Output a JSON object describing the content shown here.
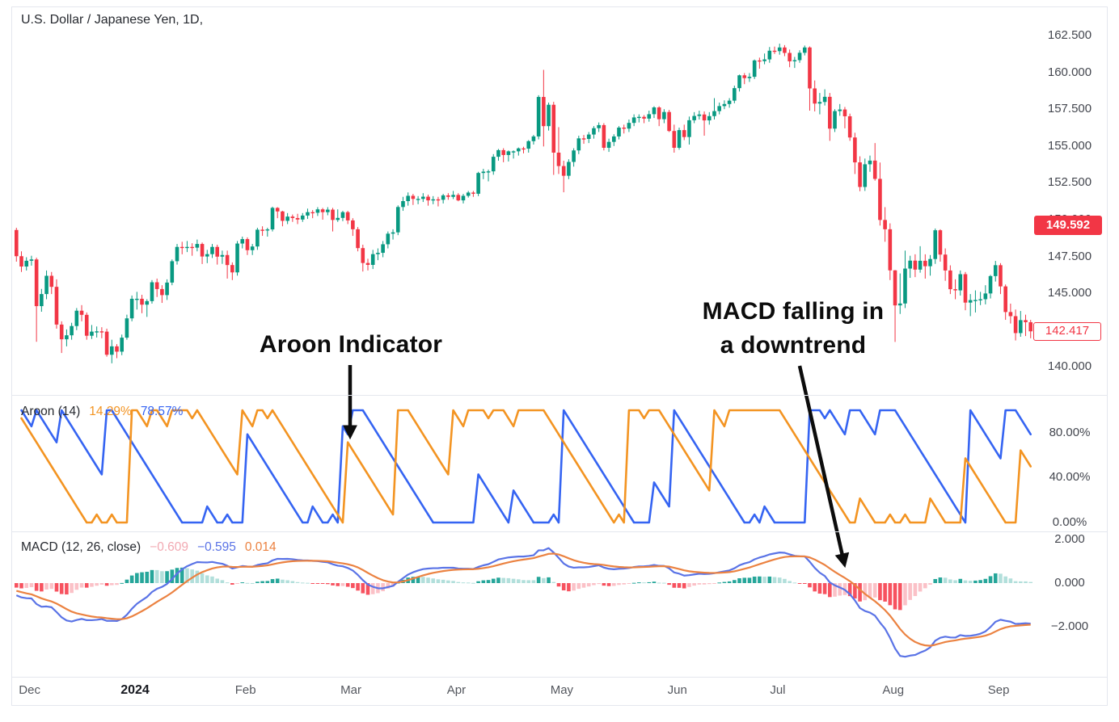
{
  "annotations": {
    "aroon_label": "Aroon Indicator",
    "macd_label_line1": "MACD falling in",
    "macd_label_line2": "a downtrend"
  },
  "chart_data": {
    "type": "candlestick",
    "title": "U.S. Dollar / Japanese Yen, 1D,",
    "symbol": "U.S. Dollar / Japanese Yen",
    "interval": "1D",
    "candle_colors": {
      "up": "#089981",
      "down": "#F23645"
    },
    "price_axis": {
      "ticks": [
        {
          "label": "162.500",
          "value": 162.5
        },
        {
          "label": "160.000",
          "value": 160
        },
        {
          "label": "157.500",
          "value": 157.5
        },
        {
          "label": "155.000",
          "value": 155
        },
        {
          "label": "152.500",
          "value": 152.5
        },
        {
          "label": "150.000",
          "value": 150
        },
        {
          "label": "147.500",
          "value": 147.5
        },
        {
          "label": "145.000",
          "value": 145
        },
        {
          "label": "142.500",
          "value": 142.5
        },
        {
          "label": "140.000",
          "value": 140
        }
      ],
      "badge_filled": {
        "label": "149.592",
        "value": 149.592
      },
      "badge_outline": {
        "label": "142.417",
        "value": 142.417
      }
    },
    "time_axis": {
      "labels": [
        {
          "text": "Dec",
          "index": 3
        },
        {
          "text": "2024",
          "index": 24,
          "bold": true
        },
        {
          "text": "Feb",
          "index": 46
        },
        {
          "text": "Mar",
          "index": 67
        },
        {
          "text": "Apr",
          "index": 88
        },
        {
          "text": "May",
          "index": 109
        },
        {
          "text": "Jun",
          "index": 132
        },
        {
          "text": "Jul",
          "index": 152
        },
        {
          "text": "Aug",
          "index": 175
        },
        {
          "text": "Sep",
          "index": 196
        }
      ]
    },
    "indicators": {
      "aroon": {
        "legend": "Aroon (14)",
        "length": 14,
        "up_value": "14.29%",
        "down_value": "78.57%",
        "up_color": "#F39422",
        "down_color": "#3564F2",
        "ticks": [
          {
            "label": "80.00%",
            "value": 80
          },
          {
            "label": "40.00%",
            "value": 40
          },
          {
            "label": "0.00%",
            "value": 0
          }
        ]
      },
      "macd": {
        "legend": "MACD (12, 26, close)",
        "fast": 12,
        "slow": 26,
        "smoothing": 9,
        "hist_value": "−0.609",
        "macd_value": "−0.595",
        "signal_value": "0.014",
        "hist_value_color": "#f2a9b2",
        "macd_color": "#5A73E6",
        "signal_color": "#EB8241",
        "hist_colors": {
          "up_grow": "#26A69A",
          "up_fall": "#B2DFDB",
          "down_fall": "#F7525F",
          "down_grow": "#FBC1C7"
        },
        "ema_seeds": {
          "ema_fast": 148.7,
          "ema_slow": 149.2,
          "signal": -0.3
        },
        "ticks": [
          {
            "label": "2.000",
            "value": 2
          },
          {
            "label": "0.000",
            "value": 0
          },
          {
            "label": "−2.000",
            "value": -2
          }
        ]
      }
    },
    "candles": [
      [
        149.3,
        149.45,
        147.15,
        147.52
      ],
      [
        147.52,
        147.85,
        146.45,
        146.82
      ],
      [
        146.82,
        147.45,
        146.55,
        147.21
      ],
      [
        147.21,
        147.55,
        146.88,
        147.3
      ],
      [
        147.3,
        147.42,
        141.71,
        144.13
      ],
      [
        144.13,
        145.3,
        143.75,
        144.95
      ],
      [
        144.95,
        146.55,
        144.6,
        146.19
      ],
      [
        146.19,
        146.45,
        144.95,
        145.44
      ],
      [
        145.44,
        145.95,
        142.6,
        142.88
      ],
      [
        142.88,
        143.1,
        140.95,
        141.88
      ],
      [
        141.88,
        142.55,
        141.4,
        142.15
      ],
      [
        142.15,
        143.0,
        141.85,
        142.78
      ],
      [
        142.78,
        144.0,
        142.5,
        143.82
      ],
      [
        143.82,
        144.2,
        143.1,
        143.54
      ],
      [
        143.54,
        143.7,
        141.85,
        142.12
      ],
      [
        142.12,
        142.85,
        141.9,
        142.4
      ],
      [
        142.4,
        142.75,
        142.0,
        142.42
      ],
      [
        142.42,
        142.7,
        141.95,
        142.4
      ],
      [
        142.4,
        142.6,
        140.7,
        140.83
      ],
      [
        140.83,
        141.85,
        140.25,
        141.4
      ],
      [
        141.4,
        141.55,
        140.6,
        141.04
      ],
      [
        141.04,
        142.2,
        140.8,
        141.99
      ],
      [
        141.99,
        143.55,
        141.85,
        143.3
      ],
      [
        143.3,
        144.85,
        143.1,
        144.63
      ],
      [
        144.63,
        145.1,
        143.9,
        144.63
      ],
      [
        144.63,
        144.9,
        143.65,
        144.23
      ],
      [
        144.23,
        144.6,
        143.4,
        144.47
      ],
      [
        144.47,
        145.9,
        144.3,
        145.75
      ],
      [
        145.75,
        146.0,
        144.75,
        145.29
      ],
      [
        145.29,
        145.55,
        144.35,
        144.88
      ],
      [
        144.88,
        145.95,
        144.55,
        145.73
      ],
      [
        145.73,
        147.3,
        145.55,
        147.18
      ],
      [
        147.18,
        148.35,
        146.95,
        148.15
      ],
      [
        148.15,
        148.5,
        147.65,
        148.14
      ],
      [
        148.14,
        148.55,
        147.8,
        148.15
      ],
      [
        148.15,
        148.4,
        147.55,
        148.1
      ],
      [
        148.1,
        148.65,
        147.85,
        148.35
      ],
      [
        148.35,
        148.45,
        146.99,
        147.5
      ],
      [
        147.5,
        147.95,
        147.05,
        147.66
      ],
      [
        147.66,
        148.35,
        147.4,
        148.15
      ],
      [
        148.15,
        148.3,
        146.95,
        147.49
      ],
      [
        147.49,
        147.9,
        147.0,
        147.6
      ],
      [
        147.6,
        147.9,
        146.0,
        146.92
      ],
      [
        146.92,
        147.1,
        145.9,
        146.42
      ],
      [
        146.42,
        148.55,
        146.2,
        148.38
      ],
      [
        148.38,
        148.85,
        148.05,
        148.68
      ],
      [
        148.68,
        148.8,
        147.6,
        147.93
      ],
      [
        147.93,
        148.35,
        147.6,
        148.18
      ],
      [
        148.18,
        149.45,
        147.95,
        149.32
      ],
      [
        149.32,
        149.55,
        148.9,
        149.29
      ],
      [
        149.29,
        149.45,
        148.85,
        149.34
      ],
      [
        149.34,
        150.88,
        149.2,
        150.8
      ],
      [
        150.8,
        150.85,
        150.1,
        150.56
      ],
      [
        150.56,
        150.6,
        149.55,
        149.92
      ],
      [
        149.92,
        150.45,
        149.7,
        150.21
      ],
      [
        150.21,
        150.35,
        149.85,
        150.11
      ],
      [
        150.11,
        150.4,
        149.7,
        150.01
      ],
      [
        150.01,
        150.45,
        149.85,
        150.28
      ],
      [
        150.28,
        150.75,
        150.05,
        150.51
      ],
      [
        150.51,
        150.65,
        150.1,
        150.47
      ],
      [
        150.47,
        150.85,
        150.25,
        150.7
      ],
      [
        150.7,
        150.8,
        150.0,
        150.51
      ],
      [
        150.51,
        150.85,
        150.3,
        150.68
      ],
      [
        150.68,
        150.8,
        149.2,
        149.98
      ],
      [
        149.98,
        150.7,
        149.85,
        150.12
      ],
      [
        150.12,
        150.6,
        149.9,
        150.51
      ],
      [
        150.51,
        150.6,
        149.7,
        149.95
      ],
      [
        149.95,
        150.1,
        148.9,
        149.35
      ],
      [
        149.35,
        149.5,
        147.85,
        148.07
      ],
      [
        148.07,
        148.3,
        146.48,
        147.06
      ],
      [
        147.06,
        147.35,
        146.55,
        146.93
      ],
      [
        146.93,
        147.95,
        146.65,
        147.66
      ],
      [
        147.66,
        148.05,
        147.25,
        147.75
      ],
      [
        147.75,
        148.55,
        147.45,
        148.33
      ],
      [
        148.33,
        149.2,
        148.05,
        149.05
      ],
      [
        149.05,
        149.35,
        148.65,
        149.14
      ],
      [
        149.14,
        150.97,
        148.95,
        150.86
      ],
      [
        150.86,
        151.55,
        150.6,
        151.26
      ],
      [
        151.26,
        151.85,
        150.95,
        151.62
      ],
      [
        151.62,
        151.75,
        151.0,
        151.41
      ],
      [
        151.41,
        151.6,
        151.05,
        151.41
      ],
      [
        151.41,
        151.8,
        151.2,
        151.56
      ],
      [
        151.56,
        151.7,
        150.95,
        151.31
      ],
      [
        151.31,
        151.6,
        151.05,
        151.38
      ],
      [
        151.38,
        151.55,
        150.9,
        151.35
      ],
      [
        151.35,
        151.75,
        151.1,
        151.65
      ],
      [
        151.65,
        151.8,
        151.35,
        151.55
      ],
      [
        151.55,
        151.95,
        151.4,
        151.68
      ],
      [
        151.68,
        151.8,
        151.25,
        151.31
      ],
      [
        151.31,
        151.75,
        151.1,
        151.62
      ],
      [
        151.62,
        151.95,
        151.5,
        151.84
      ],
      [
        151.84,
        151.95,
        151.55,
        151.76
      ],
      [
        151.76,
        153.25,
        151.6,
        153.17
      ],
      [
        153.17,
        153.45,
        152.75,
        153.26
      ],
      [
        153.26,
        153.4,
        152.6,
        153.28
      ],
      [
        153.28,
        154.45,
        153.05,
        154.27
      ],
      [
        154.27,
        154.8,
        154.0,
        154.72
      ],
      [
        154.72,
        154.85,
        153.9,
        154.39
      ],
      [
        154.39,
        154.7,
        153.95,
        154.64
      ],
      [
        154.64,
        154.7,
        154.15,
        154.64
      ],
      [
        154.64,
        154.9,
        154.35,
        154.84
      ],
      [
        154.84,
        154.95,
        154.5,
        154.82
      ],
      [
        154.82,
        155.4,
        154.55,
        155.33
      ],
      [
        155.33,
        155.75,
        155.1,
        155.65
      ],
      [
        155.65,
        158.45,
        155.45,
        158.33
      ],
      [
        158.33,
        160.17,
        154.97,
        156.35
      ],
      [
        156.35,
        157.95,
        156.05,
        157.8
      ],
      [
        157.8,
        158.0,
        153.04,
        154.55
      ],
      [
        154.55,
        156.28,
        153.1,
        153.64
      ],
      [
        153.64,
        154.0,
        151.86,
        152.98
      ],
      [
        152.98,
        154.1,
        152.75,
        153.92
      ],
      [
        153.92,
        154.85,
        153.6,
        154.7
      ],
      [
        154.7,
        155.7,
        154.45,
        155.52
      ],
      [
        155.52,
        155.75,
        155.15,
        155.48
      ],
      [
        155.48,
        155.95,
        155.2,
        155.78
      ],
      [
        155.78,
        156.35,
        155.5,
        156.21
      ],
      [
        156.21,
        156.6,
        155.95,
        156.42
      ],
      [
        156.42,
        156.55,
        154.7,
        154.88
      ],
      [
        154.88,
        155.5,
        154.6,
        155.28
      ],
      [
        155.28,
        155.8,
        155.0,
        155.65
      ],
      [
        155.65,
        156.35,
        155.45,
        156.25
      ],
      [
        156.25,
        156.45,
        155.85,
        156.18
      ],
      [
        156.18,
        156.8,
        155.95,
        156.57
      ],
      [
        156.57,
        157.15,
        156.35,
        156.94
      ],
      [
        156.94,
        157.15,
        156.6,
        156.98
      ],
      [
        156.98,
        157.1,
        156.55,
        156.86
      ],
      [
        156.86,
        157.4,
        156.65,
        157.16
      ],
      [
        157.16,
        157.7,
        156.9,
        157.62
      ],
      [
        157.62,
        157.7,
        156.35,
        156.82
      ],
      [
        156.82,
        157.5,
        156.55,
        157.31
      ],
      [
        157.31,
        157.45,
        155.95,
        156.02
      ],
      [
        156.02,
        156.45,
        154.55,
        154.88
      ],
      [
        154.88,
        156.25,
        154.75,
        156.08
      ],
      [
        156.08,
        156.45,
        155.4,
        155.61
      ],
      [
        155.61,
        157.0,
        155.1,
        156.75
      ],
      [
        156.75,
        157.3,
        156.55,
        157.04
      ],
      [
        157.04,
        157.4,
        156.8,
        157.14
      ],
      [
        157.14,
        157.35,
        155.7,
        156.74
      ],
      [
        156.74,
        157.3,
        156.45,
        157.03
      ],
      [
        157.03,
        158.25,
        156.8,
        157.37
      ],
      [
        157.37,
        157.95,
        157.15,
        157.71
      ],
      [
        157.71,
        158.1,
        157.5,
        157.85
      ],
      [
        157.85,
        158.25,
        157.6,
        158.08
      ],
      [
        158.08,
        159.1,
        157.9,
        158.93
      ],
      [
        158.93,
        159.85,
        158.7,
        159.8
      ],
      [
        159.8,
        159.95,
        159.2,
        159.61
      ],
      [
        159.61,
        159.95,
        159.35,
        159.7
      ],
      [
        159.7,
        160.87,
        159.55,
        160.81
      ],
      [
        160.81,
        161.0,
        160.25,
        160.76
      ],
      [
        160.76,
        161.28,
        160.55,
        160.88
      ],
      [
        160.88,
        161.72,
        160.65,
        161.47
      ],
      [
        161.47,
        161.75,
        161.25,
        161.44
      ],
      [
        161.44,
        161.95,
        161.2,
        161.69
      ],
      [
        161.69,
        161.85,
        161.1,
        161.32
      ],
      [
        161.32,
        161.55,
        160.35,
        160.75
      ],
      [
        160.75,
        161.05,
        160.3,
        160.83
      ],
      [
        160.83,
        161.5,
        160.65,
        161.33
      ],
      [
        161.33,
        161.82,
        161.15,
        161.69
      ],
      [
        161.69,
        161.76,
        157.4,
        158.91
      ],
      [
        158.91,
        159.45,
        157.35,
        157.88
      ],
      [
        157.88,
        158.6,
        157.15,
        157.99
      ],
      [
        157.99,
        158.85,
        157.75,
        158.34
      ],
      [
        158.34,
        158.6,
        155.35,
        156.18
      ],
      [
        156.18,
        157.5,
        155.95,
        157.37
      ],
      [
        157.37,
        157.85,
        157.05,
        157.48
      ],
      [
        157.48,
        157.65,
        156.2,
        157.02
      ],
      [
        157.02,
        157.2,
        155.35,
        155.58
      ],
      [
        155.58,
        155.9,
        153.1,
        153.89
      ],
      [
        153.89,
        154.3,
        151.93,
        152.22
      ],
      [
        152.22,
        154.15,
        151.95,
        153.76
      ],
      [
        153.76,
        154.35,
        153.25,
        154.01
      ],
      [
        154.01,
        155.2,
        152.65,
        152.77
      ],
      [
        152.77,
        153.88,
        149.6,
        149.98
      ],
      [
        149.98,
        150.85,
        148.5,
        149.35
      ],
      [
        149.35,
        149.75,
        145.9,
        146.56
      ],
      [
        146.56,
        146.58,
        141.7,
        144.18
      ],
      [
        144.18,
        146.35,
        143.6,
        144.31
      ],
      [
        144.31,
        147.9,
        144.0,
        146.68
      ],
      [
        146.68,
        147.55,
        146.05,
        147.22
      ],
      [
        147.22,
        147.65,
        146.1,
        146.61
      ],
      [
        146.61,
        148.2,
        146.4,
        147.21
      ],
      [
        147.21,
        147.65,
        146.0,
        146.84
      ],
      [
        146.84,
        147.6,
        146.2,
        147.33
      ],
      [
        147.33,
        149.4,
        147.0,
        149.28
      ],
      [
        149.28,
        149.35,
        147.15,
        147.63
      ],
      [
        147.63,
        148.05,
        145.85,
        146.55
      ],
      [
        146.55,
        146.9,
        144.95,
        145.28
      ],
      [
        145.28,
        145.95,
        144.6,
        145.2
      ],
      [
        145.2,
        146.55,
        144.85,
        146.3
      ],
      [
        146.3,
        146.45,
        143.85,
        144.37
      ],
      [
        144.37,
        144.95,
        143.45,
        144.54
      ],
      [
        144.54,
        145.2,
        143.7,
        144.55
      ],
      [
        144.55,
        145.1,
        144.2,
        144.6
      ],
      [
        144.6,
        145.55,
        144.25,
        144.99
      ],
      [
        144.99,
        146.25,
        144.65,
        146.17
      ],
      [
        146.17,
        147.2,
        145.8,
        146.91
      ],
      [
        146.91,
        147.05,
        144.95,
        145.47
      ],
      [
        145.47,
        145.6,
        143.2,
        143.73
      ],
      [
        143.73,
        144.3,
        142.95,
        143.45
      ],
      [
        143.45,
        143.9,
        141.8,
        142.3
      ],
      [
        142.3,
        143.8,
        142.05,
        143.18
      ],
      [
        143.18,
        143.55,
        142.1,
        143.04
      ],
      [
        143.04,
        143.2,
        141.95,
        142.42
      ]
    ]
  }
}
